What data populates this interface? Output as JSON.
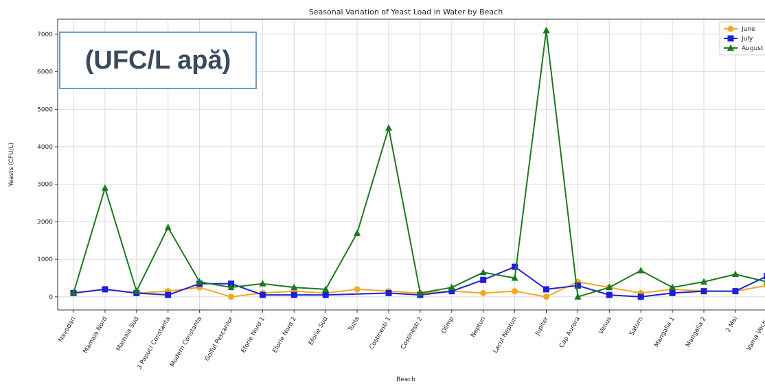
{
  "chart_data": {
    "type": "line",
    "title": "Seasonal Variation of Yeast Load in Water by Beach",
    "xlabel": "Beach",
    "ylabel": "Yeasts (CFU/L)",
    "ylim": [
      -350,
      7400
    ],
    "yticks": [
      0,
      1000,
      2000,
      3000,
      4000,
      5000,
      6000,
      7000
    ],
    "grid": true,
    "legend_position": "top-right",
    "categories": [
      "Navodari",
      "Mamaia Nord",
      "Mamaia Sud",
      "3 Papuci Constanta",
      "Modern Constanta",
      "Golful Pescarilor",
      "Eforie Nord 1",
      "Eforie Nord 2",
      "Eforie Sud",
      "Tuzla",
      "Costinesti 1",
      "Costinesti 2",
      "Olimp",
      "Neptun",
      "Lacul Neptun",
      "Jupiter",
      "Cap Aurora",
      "Venus",
      "Saturn",
      "Mangalia 1",
      "Mangalia 2",
      "2 Mai",
      "Vama Veche"
    ],
    "series": [
      {
        "name": "June",
        "color": "#f5a623",
        "marker": "circle",
        "values": [
          100,
          200,
          100,
          150,
          250,
          0,
          100,
          150,
          100,
          200,
          150,
          100,
          150,
          100,
          150,
          0,
          400,
          250,
          100,
          200,
          150,
          150,
          300
        ]
      },
      {
        "name": "July",
        "color": "#1f1fd6",
        "marker": "square",
        "values": [
          100,
          200,
          100,
          50,
          350,
          350,
          50,
          50,
          50,
          null,
          100,
          50,
          150,
          450,
          800,
          200,
          300,
          50,
          0,
          100,
          150,
          150,
          550
        ]
      },
      {
        "name": "August",
        "color": "#1a7a1a",
        "marker": "triangle",
        "values": [
          100,
          2900,
          150,
          1850,
          400,
          250,
          350,
          250,
          200,
          1700,
          4500,
          100,
          250,
          650,
          500,
          7100,
          0,
          250,
          700,
          250,
          400,
          600,
          400
        ]
      }
    ]
  },
  "overlay": {
    "text": "(UFC/L apă)"
  }
}
